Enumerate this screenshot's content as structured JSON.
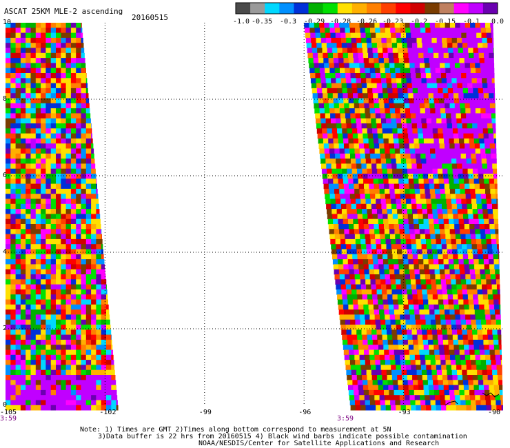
{
  "header": {
    "title": "ASCAT 25KM MLE-2 ascending",
    "date": "20160515"
  },
  "colorbar": {
    "colors": [
      "#4a4a4a",
      "#9a9a9a",
      "#00d8ff",
      "#0090ff",
      "#0030d8",
      "#00b000",
      "#00e000",
      "#ffe000",
      "#ffb000",
      "#ff8000",
      "#ff4000",
      "#ff0000",
      "#d00000",
      "#7a3c00",
      "#c08060",
      "#ff00ff",
      "#c000ff",
      "#6a00b0"
    ],
    "labels": [
      "-1.0",
      "-0.35",
      "-0.3",
      "-0.29",
      "-0.28",
      "-0.26",
      "-0.23",
      "-0.2",
      "-0.15",
      "-0.1",
      "0.0"
    ]
  },
  "map": {
    "lon_labels": [
      "-105",
      "-102",
      "-99",
      "-96",
      "-93",
      "-90"
    ],
    "lat_labels": [
      "10",
      "8",
      "6",
      "4",
      "2",
      "0"
    ],
    "time_labels": [
      "3:59",
      "3:59"
    ],
    "lon_range": [
      -105,
      -90
    ],
    "lat_range": [
      0,
      10
    ],
    "gridlines": "dotted",
    "palette": [
      "#ffe000",
      "#ffe000",
      "#ff8000",
      "#ff0000",
      "#ff00ff",
      "#c000ff",
      "#0030d8",
      "#00b000",
      "#00d8ff",
      "#7a3c00",
      "#ffb000",
      "#ff4000",
      "#d00000",
      "#6a00b0",
      "#0090ff",
      "#00e000"
    ]
  },
  "notes": {
    "line1": "Note: 1) Times are GMT 2)Times along bottom correspond to measurement at 5N",
    "line2": "3)Data buffer is 22 hrs from 20160515 4) Black wind barbs indicate possible contamination",
    "line3": "NOAA/NESDIS/Center for Satellite Applications and Research"
  }
}
